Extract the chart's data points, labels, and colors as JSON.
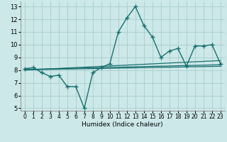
{
  "xlabel": "Humidex (Indice chaleur)",
  "ylabel": "",
  "bg_color": "#cce8e8",
  "grid_color": "#aacccc",
  "line_color": "#1a7070",
  "xlim": [
    -0.5,
    23.5
  ],
  "ylim": [
    4.8,
    13.4
  ],
  "xticks": [
    0,
    1,
    2,
    3,
    4,
    5,
    6,
    7,
    8,
    9,
    10,
    11,
    12,
    13,
    14,
    15,
    16,
    17,
    18,
    19,
    20,
    21,
    22,
    23
  ],
  "yticks": [
    5,
    6,
    7,
    8,
    9,
    10,
    11,
    12,
    13
  ],
  "main_x": [
    0,
    1,
    2,
    3,
    4,
    5,
    6,
    7,
    8,
    9,
    10,
    11,
    12,
    13,
    14,
    15,
    16,
    17,
    18,
    19,
    20,
    21,
    22,
    23
  ],
  "main_y": [
    8.1,
    8.2,
    7.8,
    7.5,
    7.6,
    6.7,
    6.7,
    5.0,
    7.8,
    8.2,
    8.5,
    11.0,
    12.1,
    13.0,
    11.5,
    10.6,
    9.0,
    9.5,
    9.7,
    8.3,
    9.9,
    9.9,
    10.0,
    8.5
  ],
  "line2_x": [
    0,
    23
  ],
  "line2_y": [
    8.05,
    8.42
  ],
  "line3_x": [
    0,
    23
  ],
  "line3_y": [
    8.0,
    8.75
  ],
  "line4_x": [
    0,
    23
  ],
  "line4_y": [
    8.02,
    8.3
  ]
}
